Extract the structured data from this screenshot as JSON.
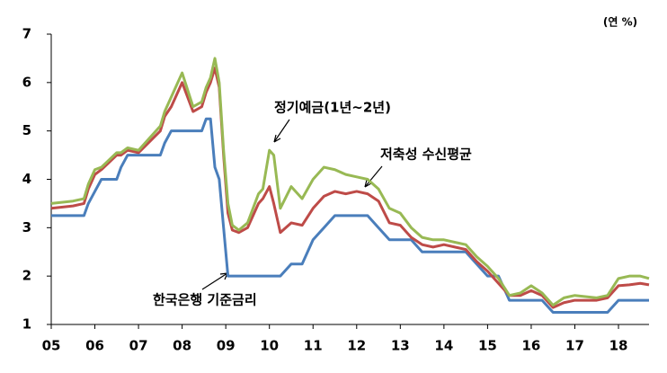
{
  "chart_data": {
    "type": "line",
    "unit_label": "(연 %)",
    "annotations": [
      "정기예금(1년~2년)",
      "저축성 수신평균",
      "한국은행 기준금리"
    ],
    "xlim": [
      2005,
      2018.7
    ],
    "xticks": [
      {
        "value": 2005,
        "label": "05"
      },
      {
        "value": 2006,
        "label": "06"
      },
      {
        "value": 2007,
        "label": "07"
      },
      {
        "value": 2008,
        "label": "08"
      },
      {
        "value": 2009,
        "label": "09"
      },
      {
        "value": 2010,
        "label": "10"
      },
      {
        "value": 2011,
        "label": "11"
      },
      {
        "value": 2012,
        "label": "12"
      },
      {
        "value": 2013,
        "label": "13"
      },
      {
        "value": 2014,
        "label": "14"
      },
      {
        "value": 2015,
        "label": "15"
      },
      {
        "value": 2016,
        "label": "16"
      },
      {
        "value": 2017,
        "label": "17"
      },
      {
        "value": 2018,
        "label": "18"
      }
    ],
    "ylim": [
      1,
      7
    ],
    "yticks": [
      1,
      2,
      3,
      4,
      5,
      6,
      7
    ],
    "x": [
      2005.0,
      2005.5,
      2005.75,
      2005.85,
      2006.0,
      2006.15,
      2006.5,
      2006.6,
      2006.75,
      2007.0,
      2007.5,
      2007.6,
      2007.75,
      2008.0,
      2008.25,
      2008.45,
      2008.55,
      2008.65,
      2008.75,
      2008.85,
      2008.95,
      2009.05,
      2009.15,
      2009.3,
      2009.5,
      2009.75,
      2009.85,
      2010.0,
      2010.1,
      2010.25,
      2010.5,
      2010.75,
      2011.0,
      2011.25,
      2011.5,
      2011.75,
      2012.0,
      2012.25,
      2012.5,
      2012.75,
      2013.0,
      2013.25,
      2013.5,
      2013.75,
      2014.0,
      2014.5,
      2014.75,
      2015.0,
      2015.25,
      2015.5,
      2015.75,
      2016.0,
      2016.25,
      2016.5,
      2016.75,
      2017.0,
      2017.5,
      2017.75,
      2018.0,
      2018.25,
      2018.5,
      2018.7
    ],
    "series": [
      {
        "name": "한국은행 기준금리",
        "color": "#4a7ebb",
        "values": [
          3.25,
          3.25,
          3.25,
          3.5,
          3.75,
          4.0,
          4.0,
          4.25,
          4.5,
          4.5,
          4.5,
          4.75,
          5.0,
          5.0,
          5.0,
          5.0,
          5.25,
          5.25,
          4.25,
          4.0,
          3.0,
          2.0,
          2.0,
          2.0,
          2.0,
          2.0,
          2.0,
          2.0,
          2.0,
          2.0,
          2.25,
          2.25,
          2.75,
          3.0,
          3.25,
          3.25,
          3.25,
          3.25,
          3.0,
          2.75,
          2.75,
          2.75,
          2.5,
          2.5,
          2.5,
          2.5,
          2.25,
          2.0,
          2.0,
          1.5,
          1.5,
          1.5,
          1.5,
          1.25,
          1.25,
          1.25,
          1.25,
          1.25,
          1.5,
          1.5,
          1.5,
          1.5
        ]
      },
      {
        "name": "저축성 수신평균",
        "color": "#be4b48",
        "values": [
          3.4,
          3.45,
          3.5,
          3.8,
          4.1,
          4.2,
          4.5,
          4.5,
          4.6,
          4.55,
          5.0,
          5.3,
          5.5,
          6.0,
          5.4,
          5.5,
          5.8,
          6.0,
          6.3,
          5.9,
          4.5,
          3.3,
          2.95,
          2.9,
          3.0,
          3.5,
          3.6,
          3.85,
          3.5,
          2.9,
          3.1,
          3.05,
          3.4,
          3.65,
          3.75,
          3.7,
          3.75,
          3.7,
          3.55,
          3.1,
          3.05,
          2.8,
          2.65,
          2.6,
          2.65,
          2.55,
          2.3,
          2.1,
          1.85,
          1.6,
          1.6,
          1.7,
          1.6,
          1.35,
          1.45,
          1.5,
          1.5,
          1.55,
          1.8,
          1.82,
          1.85,
          1.82
        ]
      },
      {
        "name": "정기예금(1년~2년)",
        "color": "#98b954",
        "values": [
          3.5,
          3.55,
          3.6,
          3.9,
          4.2,
          4.25,
          4.55,
          4.55,
          4.65,
          4.6,
          5.1,
          5.4,
          5.7,
          6.2,
          5.5,
          5.6,
          5.9,
          6.1,
          6.5,
          6.0,
          4.6,
          3.5,
          3.05,
          2.95,
          3.1,
          3.7,
          3.8,
          4.6,
          4.5,
          3.4,
          3.85,
          3.6,
          4.0,
          4.25,
          4.2,
          4.1,
          4.05,
          4.0,
          3.8,
          3.4,
          3.3,
          3.0,
          2.8,
          2.75,
          2.75,
          2.65,
          2.4,
          2.2,
          1.95,
          1.6,
          1.65,
          1.8,
          1.65,
          1.4,
          1.55,
          1.6,
          1.55,
          1.6,
          1.95,
          2.0,
          2.0,
          1.95
        ]
      }
    ]
  }
}
